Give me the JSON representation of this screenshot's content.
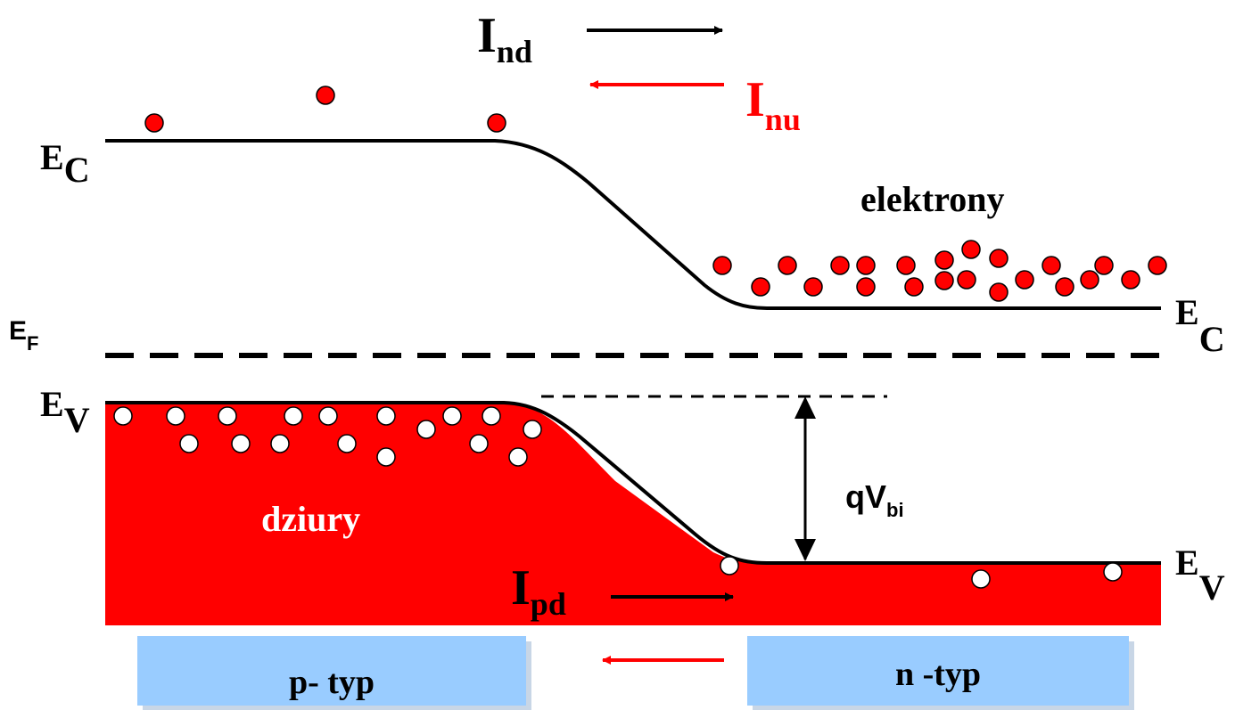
{
  "colors": {
    "band_fill": "#ff0000",
    "electron": "#ff0000",
    "hole": "#ffffff",
    "region_box": "#99ccff",
    "red_text": "#ff0000",
    "line": "#000000"
  },
  "labels": {
    "ec_left": {
      "main": "E",
      "sub": "C"
    },
    "ec_right": {
      "main": "E",
      "sub": "C"
    },
    "ev_left": {
      "main": "E",
      "sub": "V"
    },
    "ev_right": {
      "main": "E",
      "sub": "V"
    },
    "ef": {
      "main": "E",
      "sub": "F"
    },
    "ind": {
      "main": "I",
      "sub": "nd"
    },
    "inu": {
      "main": "I",
      "sub": "nu"
    },
    "ipd": {
      "main": "I",
      "sub": "pd"
    },
    "qvbi": {
      "main": "qV",
      "sub": "bi"
    },
    "electrons": "elektrony",
    "holes": "dziury",
    "p_region": "p- typ",
    "n_region": "n -typ"
  }
}
